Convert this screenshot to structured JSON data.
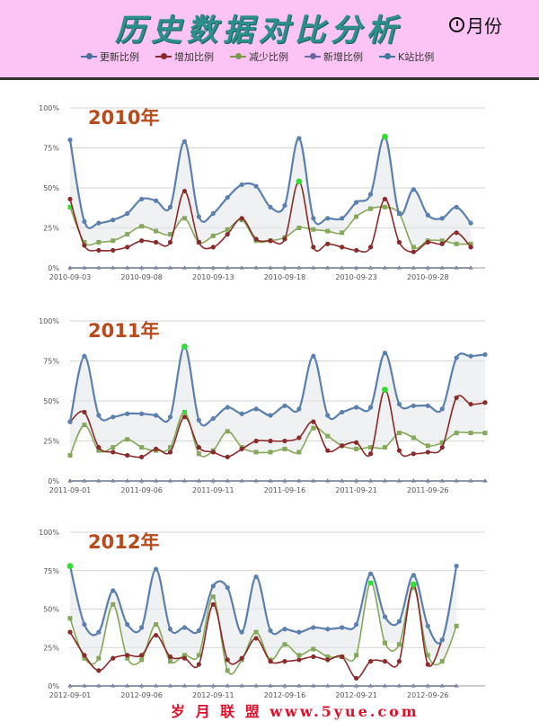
{
  "header": {
    "title": "历史数据对比分析",
    "month_label": "月份"
  },
  "legend": [
    {
      "name": "更新比例",
      "color": "#4a6f9a"
    },
    {
      "name": "增加比例",
      "color": "#8b2a2a"
    },
    {
      "name": "减少比例",
      "color": "#7a9a4a"
    },
    {
      "name": "新增比例",
      "color": "#6a6aa0"
    },
    {
      "name": "K站比例",
      "color": "#3a7a9a"
    }
  ],
  "footer": {
    "text": "岁 月 联 盟 www.5yue.com"
  },
  "chart_data": [
    {
      "type": "line",
      "title": "2010年",
      "y_ticks": [
        "0%",
        "25%",
        "50%",
        "75%",
        "100%"
      ],
      "ylim": [
        0,
        100
      ],
      "x_tick_labels": [
        "2010-09-03",
        "2010-09-08",
        "2010-09-13",
        "2010-09-18",
        "2010-09-23",
        "2010-09-28"
      ],
      "x_ticks_at": [
        0,
        5,
        10,
        15,
        20,
        25
      ],
      "x": [
        1,
        2,
        3,
        4,
        5,
        6,
        7,
        8,
        9,
        10,
        11,
        12,
        13,
        14,
        15,
        16,
        17,
        18,
        19,
        20,
        21,
        22,
        23,
        24,
        25,
        26,
        27,
        28,
        29,
        30
      ],
      "series": [
        {
          "name": "更新比例",
          "values": [
            80,
            29,
            28,
            30,
            34,
            43,
            42,
            38,
            79,
            32,
            34,
            44,
            52,
            51,
            38,
            39,
            81,
            31,
            31,
            31,
            41,
            46,
            82,
            34,
            49,
            33,
            31,
            38,
            28,
            null
          ]
        },
        {
          "name": "增加比例",
          "values": [
            43,
            14,
            11,
            11,
            13,
            17,
            16,
            16,
            48,
            16,
            13,
            21,
            31,
            18,
            17,
            18,
            54,
            13,
            15,
            13,
            11,
            13,
            43,
            16,
            10,
            16,
            15,
            22,
            13,
            null
          ]
        },
        {
          "name": "减少比例",
          "values": [
            38,
            16,
            16,
            17,
            21,
            26,
            23,
            21,
            31,
            16,
            20,
            24,
            30,
            17,
            17,
            19,
            25,
            24,
            23,
            22,
            32,
            37,
            38,
            34,
            13,
            17,
            17,
            15,
            15,
            null
          ]
        },
        {
          "name": "新增比例",
          "values": [
            0,
            0,
            0,
            0,
            0,
            0,
            0,
            0,
            0,
            0,
            0,
            0,
            0,
            0,
            0,
            0,
            0,
            0,
            0,
            0,
            0,
            0,
            0,
            0,
            0,
            0,
            0,
            0,
            0,
            null
          ]
        },
        {
          "name": "K站比例",
          "values": [
            0,
            0,
            0,
            0,
            0,
            0,
            0,
            0,
            0,
            0,
            0,
            0,
            0,
            0,
            0,
            0,
            0,
            0,
            0,
            0,
            0,
            0,
            0,
            0,
            0,
            0,
            0,
            0,
            0,
            null
          ]
        }
      ]
    },
    {
      "type": "line",
      "title": "2011年",
      "y_ticks": [
        "0%",
        "25%",
        "50%",
        "75%",
        "100%"
      ],
      "ylim": [
        0,
        100
      ],
      "x_tick_labels": [
        "2011-09-01",
        "2011-09-06",
        "2011-09-11",
        "2011-09-16",
        "2011-09-21",
        "2011-09-26"
      ],
      "x_ticks_at": [
        0,
        5,
        10,
        15,
        20,
        25
      ],
      "x": [
        1,
        2,
        3,
        4,
        5,
        6,
        7,
        8,
        9,
        10,
        11,
        12,
        13,
        14,
        15,
        16,
        17,
        18,
        19,
        20,
        21,
        22,
        23,
        24,
        25,
        26,
        27,
        28,
        29,
        30
      ],
      "series": [
        {
          "name": "更新比例",
          "values": [
            37,
            78,
            41,
            40,
            42,
            42,
            41,
            40,
            84,
            38,
            39,
            46,
            42,
            45,
            41,
            47,
            45,
            78,
            41,
            43,
            46,
            46,
            80,
            48,
            47,
            47,
            45,
            77,
            78,
            79
          ]
        },
        {
          "name": "增加比例",
          "values": [
            37,
            43,
            21,
            18,
            16,
            15,
            20,
            18,
            40,
            21,
            18,
            15,
            20,
            25,
            25,
            25,
            27,
            37,
            19,
            22,
            24,
            17,
            57,
            19,
            17,
            18,
            21,
            52,
            48,
            49
          ]
        },
        {
          "name": "减少比例",
          "values": [
            16,
            35,
            19,
            21,
            26,
            21,
            19,
            21,
            43,
            17,
            19,
            31,
            21,
            18,
            18,
            20,
            18,
            33,
            28,
            22,
            20,
            21,
            21,
            30,
            27,
            22,
            24,
            30,
            30,
            30
          ]
        },
        {
          "name": "新增比例",
          "values": [
            0,
            0,
            0,
            0,
            0,
            0,
            0,
            0,
            0,
            0,
            0,
            0,
            0,
            0,
            0,
            0,
            0,
            0,
            0,
            0,
            0,
            0,
            0,
            0,
            0,
            0,
            0,
            0,
            0,
            0
          ]
        },
        {
          "name": "K站比例",
          "values": [
            0,
            0,
            0,
            0,
            0,
            0,
            0,
            0,
            0,
            0,
            0,
            0,
            0,
            0,
            0,
            0,
            0,
            0,
            0,
            0,
            0,
            0,
            0,
            0,
            0,
            0,
            0,
            0,
            0,
            0
          ]
        }
      ]
    },
    {
      "type": "line",
      "title": "2012年",
      "y_ticks": [
        "0%",
        "25%",
        "50%",
        "75%",
        "100%"
      ],
      "ylim": [
        0,
        100
      ],
      "x_tick_labels": [
        "2012-09-01",
        "2012-09-06",
        "2012-09-11",
        "2012-09-16",
        "2012-09-21",
        "2012-09-26"
      ],
      "x_ticks_at": [
        0,
        5,
        10,
        15,
        20,
        25
      ],
      "x": [
        1,
        2,
        3,
        4,
        5,
        6,
        7,
        8,
        9,
        10,
        11,
        12,
        13,
        14,
        15,
        16,
        17,
        18,
        19,
        20,
        21,
        22,
        23,
        24,
        25,
        26,
        27,
        28,
        29,
        30
      ],
      "series": [
        {
          "name": "更新比例",
          "values": [
            78,
            40,
            35,
            62,
            40,
            38,
            76,
            37,
            38,
            36,
            65,
            64,
            35,
            71,
            36,
            37,
            35,
            38,
            37,
            38,
            40,
            73,
            45,
            42,
            72,
            39,
            30,
            78,
            null,
            null
          ]
        },
        {
          "name": "增加比例",
          "values": [
            35,
            20,
            10,
            18,
            20,
            20,
            33,
            19,
            18,
            14,
            53,
            17,
            18,
            31,
            16,
            16,
            17,
            19,
            17,
            19,
            5,
            16,
            16,
            16,
            66,
            14,
            30,
            null,
            null,
            null
          ]
        },
        {
          "name": "减少比例",
          "values": [
            44,
            18,
            18,
            53,
            18,
            17,
            40,
            16,
            20,
            20,
            58,
            10,
            17,
            35,
            17,
            27,
            20,
            24,
            19,
            19,
            20,
            67,
            28,
            27,
            64,
            20,
            16,
            39,
            null,
            null
          ]
        },
        {
          "name": "新增比例",
          "values": [
            0,
            0,
            0,
            0,
            0,
            0,
            0,
            0,
            0,
            0,
            0,
            0,
            0,
            0,
            0,
            0,
            0,
            0,
            0,
            0,
            0,
            0,
            0,
            0,
            0,
            0,
            0,
            0,
            null,
            null
          ]
        },
        {
          "name": "K站比例",
          "values": [
            0,
            0,
            0,
            0,
            0,
            0,
            0,
            0,
            0,
            0,
            0,
            0,
            0,
            0,
            0,
            0,
            0,
            0,
            0,
            0,
            0,
            0,
            0,
            0,
            0,
            0,
            0,
            0,
            null,
            null
          ]
        }
      ]
    }
  ]
}
